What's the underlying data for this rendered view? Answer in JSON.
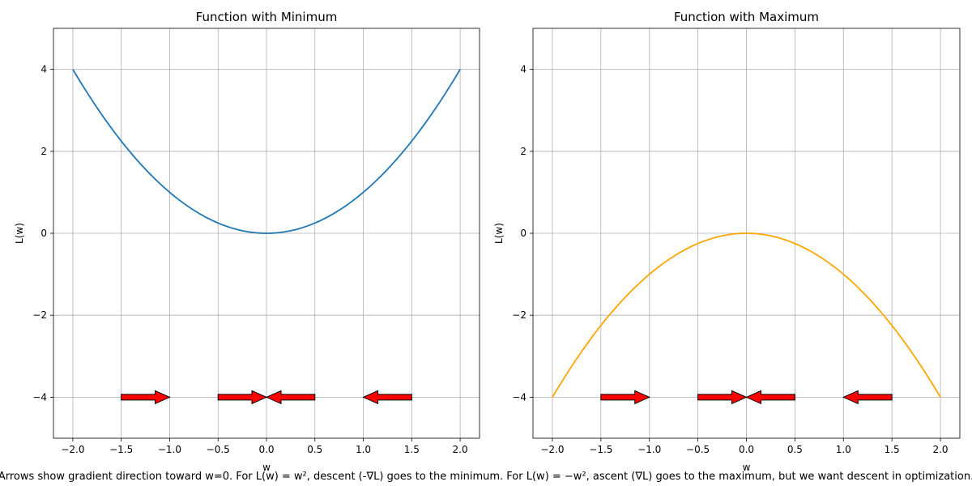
{
  "caption": "Arrows show gradient direction toward w=0. For L(w) = w², descent (-∇L) goes to the minimum. For L(w) = −w², ascent (∇L) goes to the maximum, but we want descent in optimization.",
  "chart_data": [
    {
      "type": "line",
      "title": "Function with Minimum",
      "xlabel": "w",
      "ylabel": "L(w)",
      "xlim": [
        -2.2,
        2.2
      ],
      "ylim": [
        -5,
        5
      ],
      "xticks": [
        -2.0,
        -1.5,
        -1.0,
        -0.5,
        0.0,
        0.5,
        1.0,
        1.5,
        2.0
      ],
      "xtick_labels": [
        "−2.0",
        "−1.5",
        "−1.0",
        "−0.5",
        "0.0",
        "0.5",
        "1.0",
        "1.5",
        "2.0"
      ],
      "yticks": [
        -4,
        -2,
        0,
        2,
        4
      ],
      "ytick_labels": [
        "−4",
        "−2",
        "0",
        "2",
        "4"
      ],
      "grid": true,
      "series": [
        {
          "function": "w^2",
          "x_range": [
            -2,
            2
          ],
          "color": "#1f77b4"
        }
      ],
      "arrows": [
        {
          "x_start": -1.5,
          "x_end": -1.0,
          "y": -4
        },
        {
          "x_start": -0.5,
          "x_end": 0.0,
          "y": -4
        },
        {
          "x_start": 0.5,
          "x_end": 0.0,
          "y": -4
        },
        {
          "x_start": 1.5,
          "x_end": 1.0,
          "y": -4
        }
      ],
      "arrow_color": "#ff0000"
    },
    {
      "type": "line",
      "title": "Function with Maximum",
      "xlabel": "w",
      "ylabel": "L(w)",
      "xlim": [
        -2.2,
        2.2
      ],
      "ylim": [
        -5,
        5
      ],
      "xticks": [
        -2.0,
        -1.5,
        -1.0,
        -0.5,
        0.0,
        0.5,
        1.0,
        1.5,
        2.0
      ],
      "xtick_labels": [
        "−2.0",
        "−1.5",
        "−1.0",
        "−0.5",
        "0.0",
        "0.5",
        "1.0",
        "1.5",
        "2.0"
      ],
      "yticks": [
        -4,
        -2,
        0,
        2,
        4
      ],
      "ytick_labels": [
        "−4",
        "−2",
        "0",
        "2",
        "4"
      ],
      "grid": true,
      "series": [
        {
          "function": "-w^2",
          "x_range": [
            -2,
            2
          ],
          "color": "#ffa500"
        }
      ],
      "arrows": [
        {
          "x_start": -1.5,
          "x_end": -1.0,
          "y": -4
        },
        {
          "x_start": -0.5,
          "x_end": 0.0,
          "y": -4
        },
        {
          "x_start": 0.5,
          "x_end": 0.0,
          "y": -4
        },
        {
          "x_start": 1.5,
          "x_end": 1.0,
          "y": -4
        }
      ],
      "arrow_color": "#ff0000"
    }
  ]
}
